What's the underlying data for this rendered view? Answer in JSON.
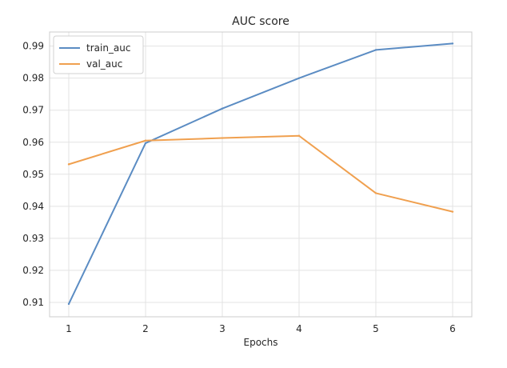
{
  "chart_data": {
    "type": "line",
    "title": "AUC score",
    "xlabel": "Epochs",
    "ylabel": "",
    "x": [
      1,
      2,
      3,
      4,
      5,
      6
    ],
    "xlim": [
      0.75,
      6.25
    ],
    "ylim": [
      0.9055,
      0.9944
    ],
    "xticks": [
      1,
      2,
      3,
      4,
      5,
      6
    ],
    "yticks": [
      0.91,
      0.92,
      0.93,
      0.94,
      0.95,
      0.96,
      0.97,
      0.98,
      0.99
    ],
    "grid": true,
    "legend_position": "top-left",
    "series": [
      {
        "name": "train_auc",
        "color": "#5b8cc3",
        "values": [
          0.9095,
          0.9597,
          0.9705,
          0.98,
          0.9888,
          0.9908
        ]
      },
      {
        "name": "val_auc",
        "color": "#f0a04f",
        "values": [
          0.9531,
          0.9605,
          0.9613,
          0.962,
          0.9441,
          0.9383
        ]
      }
    ]
  }
}
